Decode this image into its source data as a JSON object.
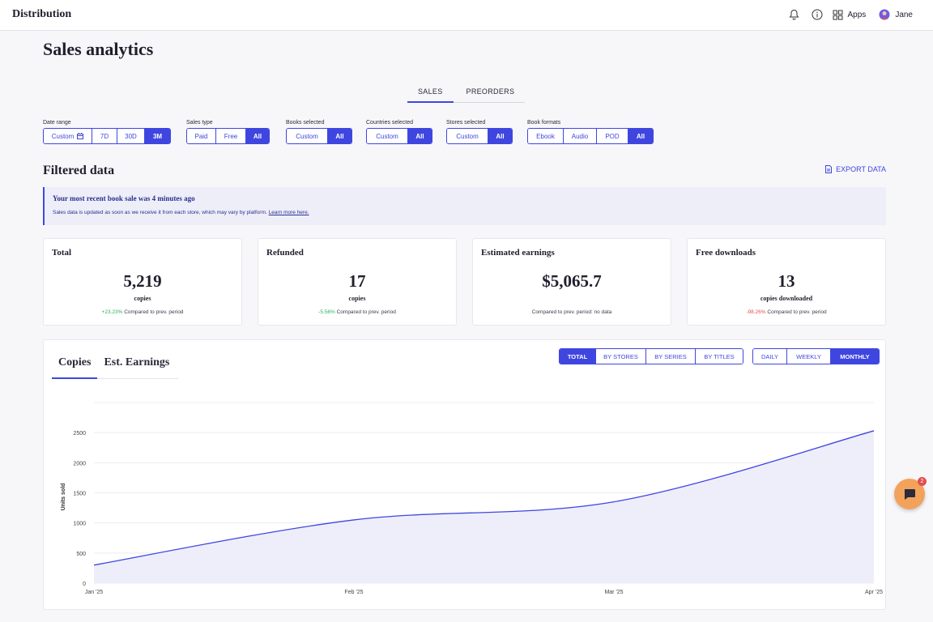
{
  "app": {
    "title": "Distribution"
  },
  "header": {
    "apps_label": "Apps",
    "user_name": "Jane"
  },
  "page": {
    "title": "Sales analytics"
  },
  "tabs": [
    {
      "label": "SALES",
      "active": true
    },
    {
      "label": "PREORDERS",
      "active": false
    }
  ],
  "filters": {
    "date_range": {
      "label": "Date range",
      "options": [
        "Custom",
        "7D",
        "30D",
        "3M"
      ],
      "selected": "3M"
    },
    "sales_type": {
      "label": "Sales type",
      "options": [
        "Paid",
        "Free",
        "All"
      ],
      "selected": "All"
    },
    "books_selected": {
      "label": "Books selected",
      "options": [
        "Custom",
        "All"
      ],
      "selected": "All"
    },
    "countries_selected": {
      "label": "Countries selected",
      "options": [
        "Custom",
        "All"
      ],
      "selected": "All"
    },
    "stores_selected": {
      "label": "Stores selected",
      "options": [
        "Custom",
        "All"
      ],
      "selected": "All"
    },
    "book_formats": {
      "label": "Book formats",
      "options": [
        "Ebook",
        "Audio",
        "POD",
        "All"
      ],
      "selected": "All"
    }
  },
  "filtered": {
    "title": "Filtered data",
    "export_label": "EXPORT DATA"
  },
  "info": {
    "title": "Your most recent book sale was 4 minutes ago",
    "text": "Sales data is updated as soon as we receive it from each store, which may vary by platform.",
    "link": "Learn more here."
  },
  "cards": [
    {
      "label": "Total",
      "value": "5,219",
      "unit": "copies",
      "change": "+23.23%",
      "change_type": "pos",
      "compare": "Compared to prev. period"
    },
    {
      "label": "Refunded",
      "value": "17",
      "unit": "copies",
      "change": "-5.56%",
      "change_type": "pos",
      "compare": "Compared to prev. period"
    },
    {
      "label": "Estimated earnings",
      "value": "$5,065.7",
      "unit": "",
      "change": "",
      "change_type": "",
      "compare": "Compared to prev. period: no data"
    },
    {
      "label": "Free downloads",
      "value": "13",
      "unit": "copies downloaded",
      "change": "-98.26%",
      "change_type": "neg",
      "compare": "Compared to prev. period"
    }
  ],
  "chart_panel": {
    "tabs": [
      {
        "label": "Copies",
        "active": true
      },
      {
        "label": "Est. Earnings",
        "active": false
      }
    ],
    "view_options": [
      "TOTAL",
      "BY STORES",
      "BY SERIES",
      "BY TITLES"
    ],
    "view_selected": "TOTAL",
    "period_options": [
      "DAILY",
      "WEEKLY",
      "MONTHLY"
    ],
    "period_selected": "MONTHLY"
  },
  "chat": {
    "badge": "2"
  },
  "colors": {
    "accent": "#3f46e0",
    "positive": "#2ab05b",
    "negative": "#e0504b",
    "fill": "#eeeefb"
  },
  "chart_data": {
    "type": "area",
    "x": [
      "Jan '25",
      "Feb '25",
      "Mar '25",
      "Apr '25"
    ],
    "series": [
      {
        "values": [
          300,
          1050,
          1350,
          2530
        ]
      }
    ],
    "ylabel": "Units sold",
    "yticks": [
      0,
      500,
      1000,
      1500,
      2000,
      2500
    ],
    "ylim": [
      0,
      3000
    ],
    "grid": true
  }
}
